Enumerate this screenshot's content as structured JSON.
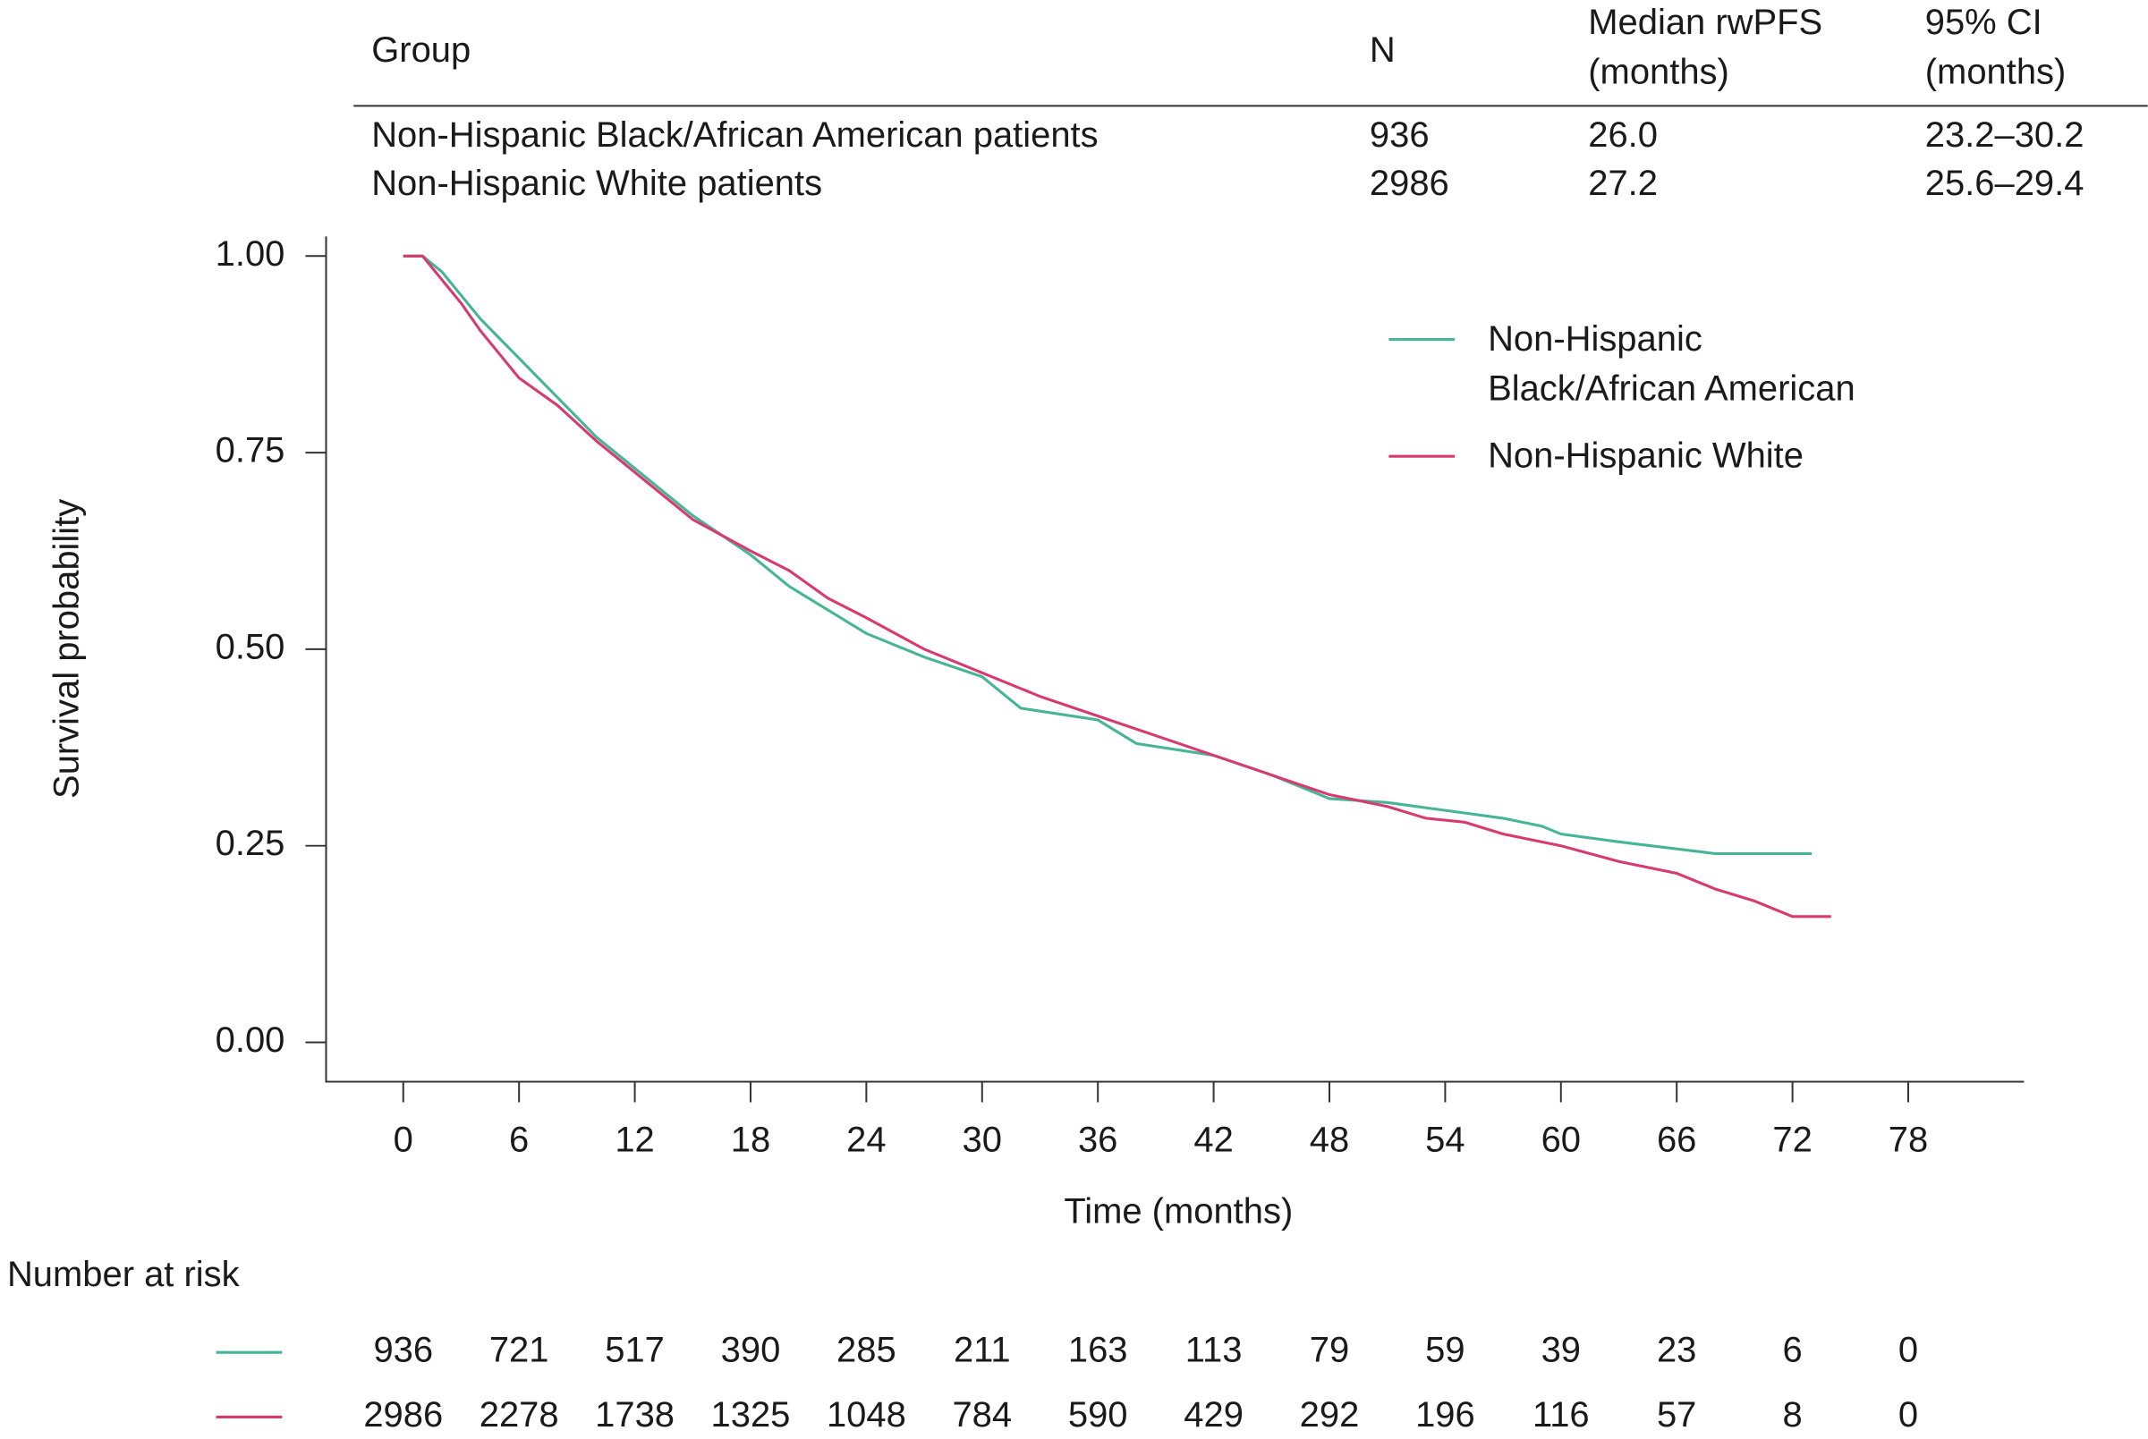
{
  "chart_data": {
    "type": "line",
    "table": {
      "columns": [
        [
          "Group"
        ],
        [
          "N"
        ],
        [
          "Median rwPFS",
          "(months)"
        ],
        [
          "95% CI",
          "(months)"
        ]
      ],
      "rows": [
        [
          "Non-Hispanic Black/African American patients",
          "936",
          "26.0",
          "23.2–30.2"
        ],
        [
          "Non-Hispanic White patients",
          "2986",
          "27.2",
          "25.6–29.4"
        ]
      ]
    },
    "xlabel": "Time (months)",
    "ylabel": "Survival probability",
    "xlim": [
      -4,
      84
    ],
    "ylim": [
      -0.05,
      1.025
    ],
    "xticks": [
      0,
      6,
      12,
      18,
      24,
      30,
      36,
      42,
      48,
      54,
      60,
      66,
      72,
      78
    ],
    "yticks": [
      {
        "value": 0,
        "label": "0.00"
      },
      {
        "value": 0.25,
        "label": "0.25"
      },
      {
        "value": 0.5,
        "label": "0.50"
      },
      {
        "value": 0.75,
        "label": "0.75"
      },
      {
        "value": 1,
        "label": "1.00"
      }
    ],
    "series": [
      {
        "name": "Non-Hispanic Black/African American",
        "color": "#45b596",
        "x": [
          0,
          1,
          2,
          3,
          4,
          5,
          6,
          8,
          10,
          12,
          15,
          18,
          20,
          22,
          24,
          27,
          30,
          32,
          36,
          38,
          42,
          45,
          48,
          51,
          54,
          57,
          59,
          60,
          63,
          68,
          73
        ],
        "values": [
          1,
          1,
          0.98,
          0.95,
          0.92,
          0.895,
          0.87,
          0.82,
          0.77,
          0.73,
          0.67,
          0.62,
          0.58,
          0.55,
          0.52,
          0.49,
          0.465,
          0.425,
          0.41,
          0.38,
          0.365,
          0.34,
          0.31,
          0.305,
          0.295,
          0.285,
          0.275,
          0.265,
          0.255,
          0.24,
          0.24
        ]
      },
      {
        "name": "Non-Hispanic White",
        "color": "#d93a6e",
        "x": [
          0,
          1,
          2,
          3,
          4,
          5,
          6,
          8,
          10,
          12,
          15,
          18,
          20,
          22,
          24,
          27,
          30,
          33,
          36,
          39,
          42,
          45,
          48,
          51,
          53,
          55,
          57,
          60,
          63,
          66,
          68,
          70,
          72,
          74
        ],
        "values": [
          1,
          1,
          0.97,
          0.94,
          0.905,
          0.875,
          0.845,
          0.81,
          0.765,
          0.725,
          0.665,
          0.625,
          0.6,
          0.565,
          0.54,
          0.5,
          0.47,
          0.44,
          0.415,
          0.39,
          0.365,
          0.34,
          0.315,
          0.3,
          0.285,
          0.28,
          0.265,
          0.25,
          0.23,
          0.215,
          0.195,
          0.18,
          0.16,
          0.16
        ]
      }
    ],
    "risk_table": {
      "title": "Number at risk",
      "rows": [
        [
          936,
          721,
          517,
          390,
          285,
          211,
          163,
          113,
          79,
          59,
          39,
          23,
          6,
          0
        ],
        [
          2986,
          2278,
          1738,
          1325,
          1048,
          784,
          590,
          429,
          292,
          196,
          116,
          57,
          8,
          0
        ]
      ]
    }
  }
}
